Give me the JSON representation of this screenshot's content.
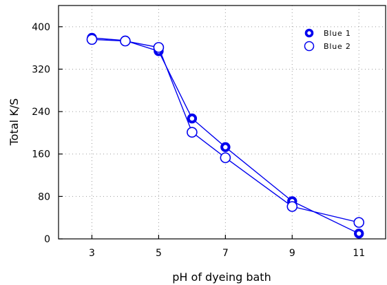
{
  "chart_data": {
    "type": "line",
    "xlabel": "pH of dyeing bath",
    "ylabel": "Total K/S",
    "xlim": [
      2.0,
      11.8
    ],
    "ylim": [
      0,
      440
    ],
    "xticks": [
      3,
      5,
      7,
      9,
      11
    ],
    "yticks": [
      0,
      80,
      160,
      240,
      320,
      400
    ],
    "grid": true,
    "legend_position": "top-right",
    "series": [
      {
        "name": "Blue 1",
        "marker": "filled-ring",
        "color": "#0000ee",
        "x": [
          3,
          4,
          5,
          6,
          7,
          9,
          11
        ],
        "y": [
          379,
          374,
          354,
          227,
          173,
          71,
          10
        ]
      },
      {
        "name": "Blue 2",
        "marker": "open-circle",
        "color": "#0000ee",
        "x": [
          3,
          4,
          5,
          6,
          7,
          9,
          11
        ],
        "y": [
          376,
          373,
          361,
          201,
          153,
          61,
          31
        ]
      }
    ]
  }
}
